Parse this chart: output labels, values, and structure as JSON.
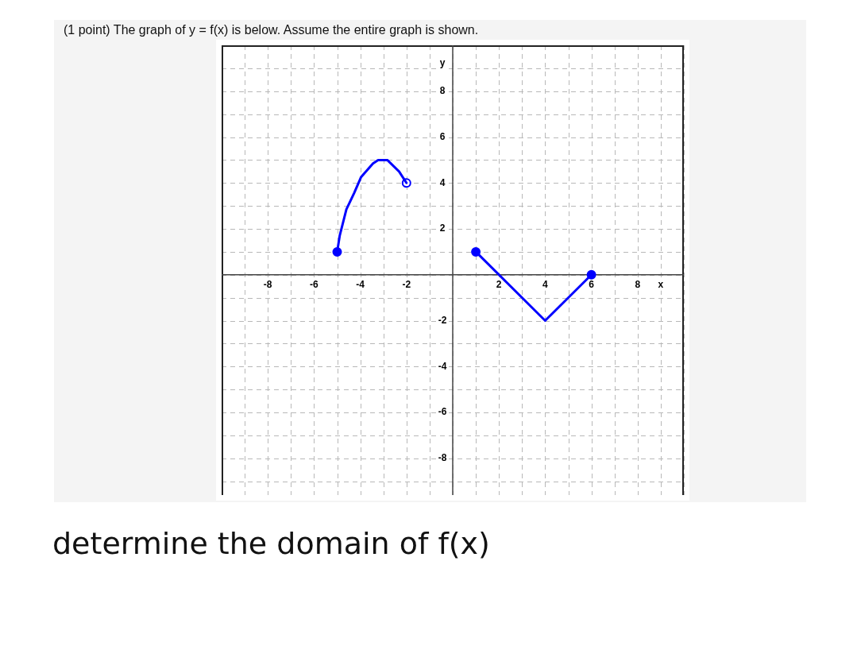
{
  "chart_data": {
    "type": "line",
    "title": "(1 point) The graph of y = f(x) is below. Assume the entire graph is shown.",
    "xlabel": "x",
    "ylabel": "y",
    "annotations": [
      "determine the domain of f(x)"
    ],
    "xlim": [
      -10,
      10
    ],
    "ylim": [
      -9.6,
      10
    ],
    "xticks": [
      {
        "value": -10,
        "label": null
      },
      {
        "value": -9,
        "label": null
      },
      -8,
      {
        "value": -7,
        "label": null
      },
      -6,
      {
        "value": -5,
        "label": null
      },
      -4,
      {
        "value": -3,
        "label": null
      },
      -2,
      {
        "value": -1,
        "label": null
      },
      {
        "value": 0,
        "label": null
      },
      {
        "value": 1,
        "label": null
      },
      2,
      {
        "value": 3,
        "label": null
      },
      4,
      {
        "value": 5,
        "label": null
      },
      6,
      {
        "value": 7,
        "label": null
      },
      8,
      {
        "value": 9,
        "label": null
      },
      {
        "value": 10,
        "label": null
      }
    ],
    "yticks": [
      {
        "value": -9,
        "label": null
      },
      -8,
      {
        "value": -7,
        "label": null
      },
      -6,
      {
        "value": -5,
        "label": null
      },
      -4,
      {
        "value": -3,
        "label": null
      },
      -2,
      {
        "value": -1,
        "label": null
      },
      {
        "value": 0,
        "label": null
      },
      {
        "value": 1,
        "label": null
      },
      2,
      {
        "value": 3,
        "label": null
      },
      4,
      {
        "value": 5,
        "label": null
      },
      6,
      {
        "value": 7,
        "label": null
      },
      8,
      {
        "value": 9,
        "label": null
      },
      {
        "value": 10,
        "label": null
      }
    ],
    "grid": true,
    "series": [
      {
        "color": "#0000ff",
        "marker": "none",
        "x": [
          -5,
          -4.89,
          -4.6,
          -4.26,
          -3.97,
          -3.45,
          -3.23,
          -2.83,
          -2.32,
          -2
        ],
        "values": [
          1,
          1.7,
          2.85,
          3.57,
          4.25,
          4.85,
          5,
          5,
          4.5,
          4
        ]
      },
      {
        "color": "#0000ff",
        "marker": "none",
        "x": [
          1,
          4,
          6
        ],
        "values": [
          1,
          -2,
          0
        ]
      },
      {
        "type": "scatter",
        "color": "#0000ff",
        "marker": "circle",
        "x": [
          -5,
          1,
          6
        ],
        "values": [
          1,
          1,
          0
        ]
      },
      {
        "type": "scatter",
        "color": "#0000ff",
        "marker": "circle",
        "colors": [
          "#ffffff"
        ],
        "x": [
          -2
        ],
        "values": [
          4
        ]
      }
    ]
  }
}
